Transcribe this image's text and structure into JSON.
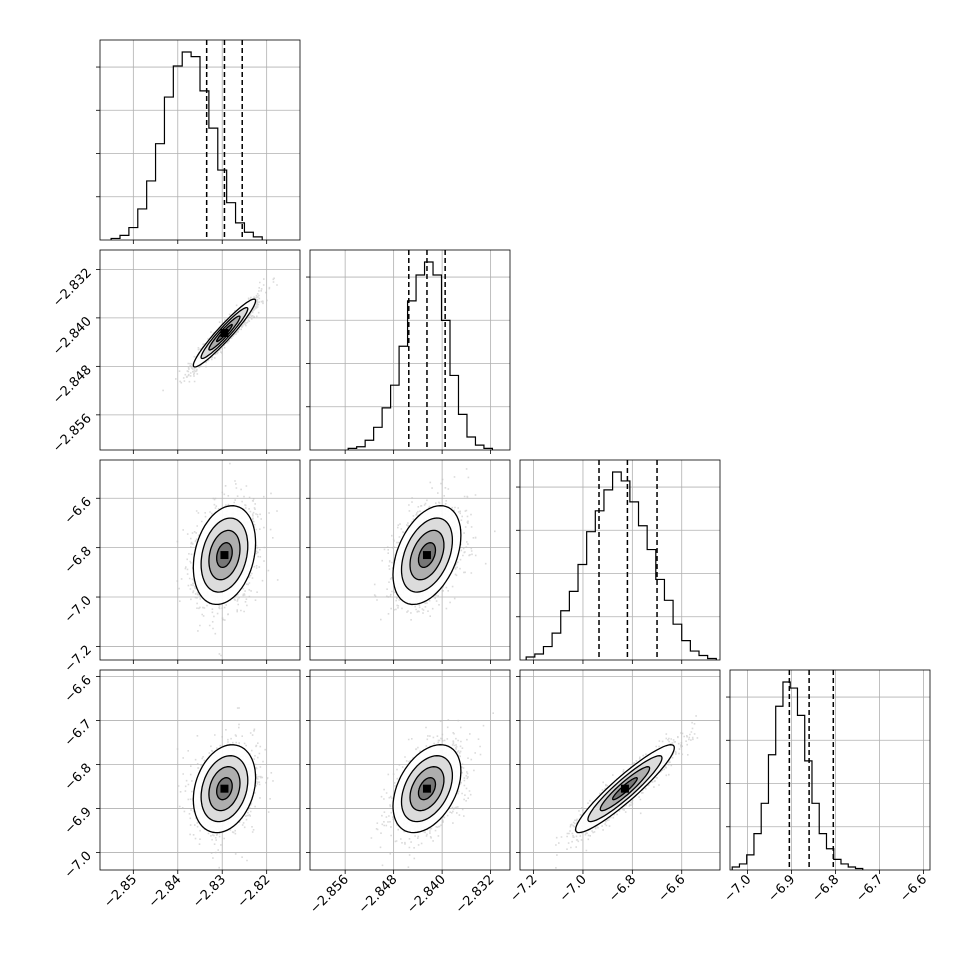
{
  "chart_data": {
    "type": "corner",
    "grid": true,
    "parameters": [
      {
        "range": [
          -2.8575,
          -2.8125
        ],
        "ticks": [
          -2.85,
          -2.84,
          -2.83,
          -2.82
        ],
        "tick_labels": [
          "−2.85",
          "−2.84",
          "−2.83",
          "−2.82"
        ],
        "quantiles": [
          -2.8335,
          -2.8295,
          -2.8255
        ],
        "hist": {
          "start": -2.855,
          "bin_width": 0.002,
          "counts": [
            1,
            3,
            8,
            20,
            38,
            62,
            92,
            112,
            121,
            118,
            96,
            72,
            45,
            24,
            11,
            5,
            2
          ]
        }
      },
      {
        "range": [
          -2.8618,
          -2.8288
        ],
        "ticks": [
          -2.856,
          -2.848,
          -2.84,
          -2.832
        ],
        "tick_labels": [
          "−2.856",
          "−2.848",
          "−2.840",
          "−2.832"
        ],
        "quantiles": [
          -2.8455,
          -2.8425,
          -2.8395
        ],
        "hist": {
          "start": -2.8555,
          "bin_width": 0.0014,
          "counts": [
            1,
            2,
            6,
            14,
            26,
            40,
            64,
            92,
            108,
            116,
            108,
            80,
            46,
            22,
            8,
            3,
            1
          ]
        }
      },
      {
        "range": [
          -7.255,
          -6.445
        ],
        "ticks": [
          -7.2,
          -7.0,
          -6.8,
          -6.6
        ],
        "tick_labels": [
          "−7.2",
          "−7.0",
          "−6.8",
          "−6.6"
        ],
        "y_ticks": [
          -7.2,
          -7.0,
          -6.8,
          -6.6
        ],
        "y_tick_labels": [
          "−7.2",
          "−7.0",
          "−6.8",
          "−6.6"
        ],
        "quantiles": [
          -6.935,
          -6.82,
          -6.7
        ],
        "hist": {
          "start": -7.23,
          "bin_width": 0.035,
          "counts": [
            2,
            4,
            9,
            18,
            33,
            46,
            64,
            86,
            100,
            114,
            126,
            120,
            106,
            90,
            74,
            54,
            40,
            24,
            13,
            6,
            3,
            1
          ]
        }
      },
      {
        "range": [
          -7.04,
          -6.585
        ],
        "ticks": [
          -7.0,
          -6.9,
          -6.8,
          -6.7,
          -6.6
        ],
        "tick_labels": [
          "−7.0",
          "−6.9",
          "−6.8",
          "−6.7",
          "−6.6"
        ],
        "y_ticks": [
          -7.0,
          -6.9,
          -6.8,
          -6.7,
          -6.6
        ],
        "y_tick_labels": [
          "−7.0",
          "−6.9",
          "−6.8",
          "−6.7",
          "−6.6"
        ],
        "quantiles": [
          -6.905,
          -6.86,
          -6.805
        ],
        "hist": {
          "start": -7.035,
          "bin_width": 0.0165,
          "counts": [
            2,
            4,
            10,
            24,
            44,
            76,
            108,
            124,
            120,
            102,
            72,
            44,
            24,
            14,
            7,
            4,
            2,
            1
          ]
        }
      }
    ],
    "pairs": [
      {
        "row": 1,
        "col": 0,
        "mean": [
          -2.8295,
          -2.8425
        ],
        "sd": [
          0.0035,
          0.0028
        ],
        "corr": 0.95
      },
      {
        "row": 2,
        "col": 0,
        "mean": [
          -2.8295,
          -6.83
        ],
        "sd": [
          0.0035,
          0.1
        ],
        "corr": 0.25
      },
      {
        "row": 2,
        "col": 1,
        "mean": [
          -2.8425,
          -6.83
        ],
        "sd": [
          0.0028,
          0.1
        ],
        "corr": 0.4
      },
      {
        "row": 3,
        "col": 0,
        "mean": [
          -2.8295,
          -6.855
        ],
        "sd": [
          0.0035,
          0.05
        ],
        "corr": 0.25
      },
      {
        "row": 3,
        "col": 1,
        "mean": [
          -2.8425,
          -6.855
        ],
        "sd": [
          0.0028,
          0.05
        ],
        "corr": 0.4
      },
      {
        "row": 3,
        "col": 2,
        "mean": [
          -6.83,
          -6.855
        ],
        "sd": [
          0.1,
          0.05
        ],
        "corr": 0.93
      }
    ]
  }
}
